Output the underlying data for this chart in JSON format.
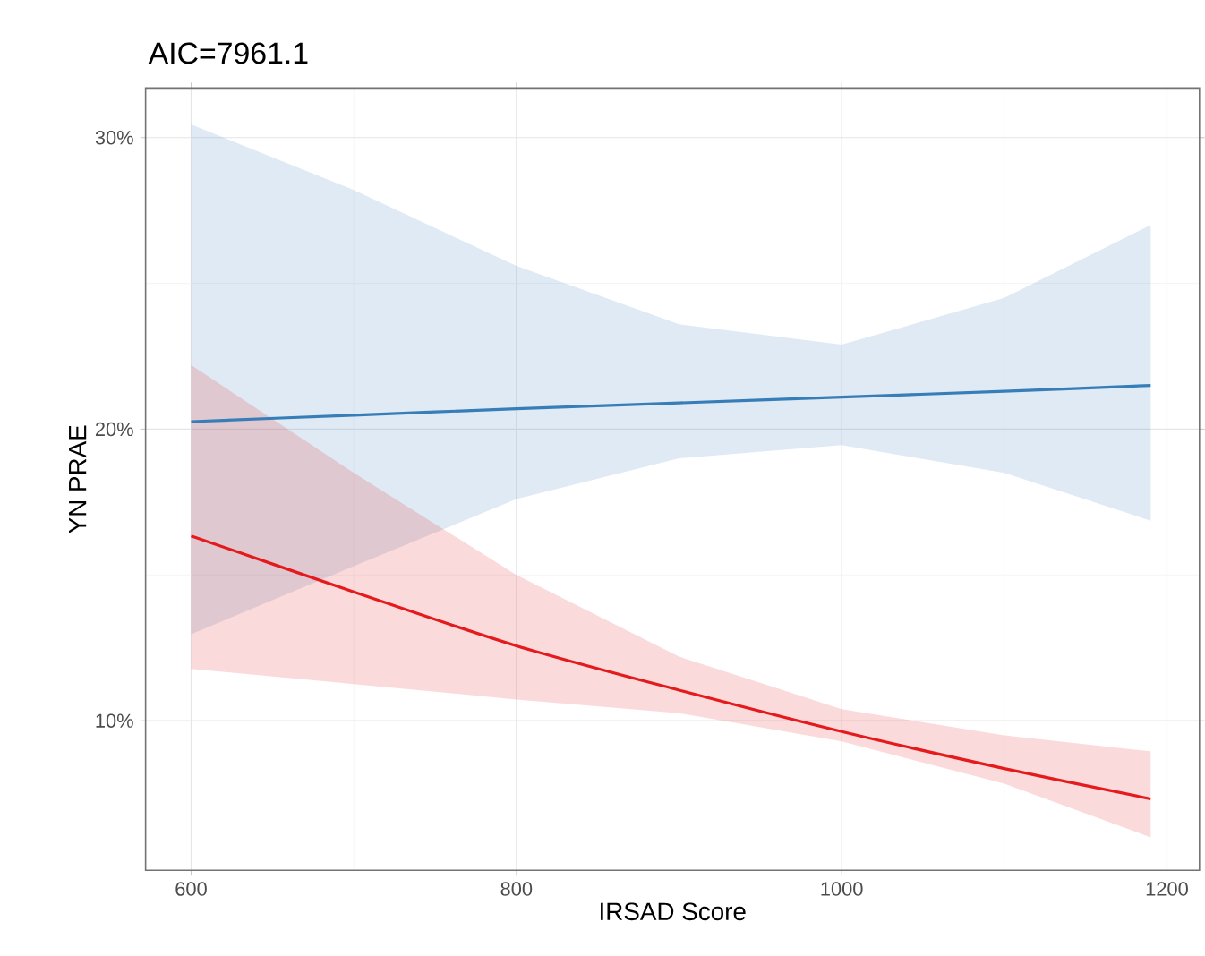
{
  "chart_data": {
    "type": "line",
    "title": "AIC=7961.1",
    "xlabel": "IRSAD Score",
    "ylabel": "YN PRAE",
    "xlim": [
      572,
      1220
    ],
    "ylim": [
      4.87,
      31.7
    ],
    "xticks": [
      600,
      800,
      1000,
      1200
    ],
    "yticks": [
      {
        "value": 10,
        "label": "10%"
      },
      {
        "value": 20,
        "label": "20%"
      },
      {
        "value": 30,
        "label": "30%"
      }
    ],
    "grid": true,
    "line_style": "solid",
    "series": [
      {
        "color": "#377eb8",
        "x": [
          600,
          700,
          800,
          900,
          1000,
          1100,
          1190
        ],
        "values": [
          20.26,
          20.48,
          20.7,
          20.9,
          21.1,
          21.3,
          21.5
        ],
        "lower": [
          12.97,
          15.3,
          17.6,
          19.0,
          19.45,
          18.5,
          16.86
        ],
        "upper": [
          30.45,
          28.2,
          25.6,
          23.6,
          22.9,
          24.5,
          27.0
        ]
      },
      {
        "color": "#e41a1c",
        "x": [
          600,
          700,
          800,
          900,
          1000,
          1100,
          1190
        ],
        "values": [
          16.34,
          14.42,
          12.57,
          11.05,
          9.63,
          8.36,
          7.32
        ],
        "lower": [
          11.78,
          11.26,
          10.73,
          10.26,
          9.29,
          7.84,
          6.0
        ],
        "upper": [
          22.2,
          18.5,
          15.0,
          12.2,
          10.4,
          9.5,
          8.95
        ]
      }
    ]
  }
}
